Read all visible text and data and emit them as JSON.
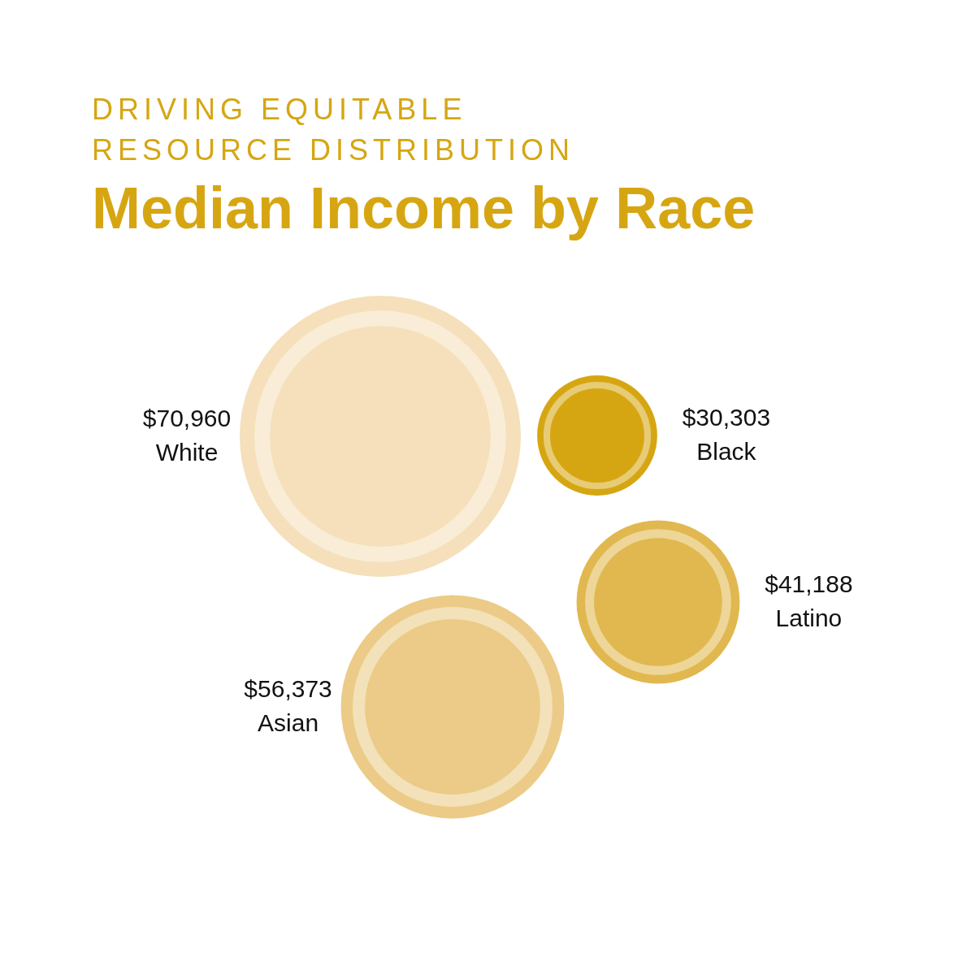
{
  "chart_data": {
    "type": "other",
    "subtitle": "DRIVING EQUITABLE RESOURCE DISTRIBUTION",
    "title": "Median Income by Race",
    "categories": [
      "White",
      "Black",
      "Latino",
      "Asian"
    ],
    "values": [
      70960,
      30303,
      41188,
      56373
    ],
    "value_labels": [
      "$70,960",
      "$30,303",
      "$41,188",
      "$56,373"
    ],
    "colors": [
      "#f5e0bb",
      "#d6a612",
      "#e1b84f",
      "#ebcb87"
    ]
  }
}
